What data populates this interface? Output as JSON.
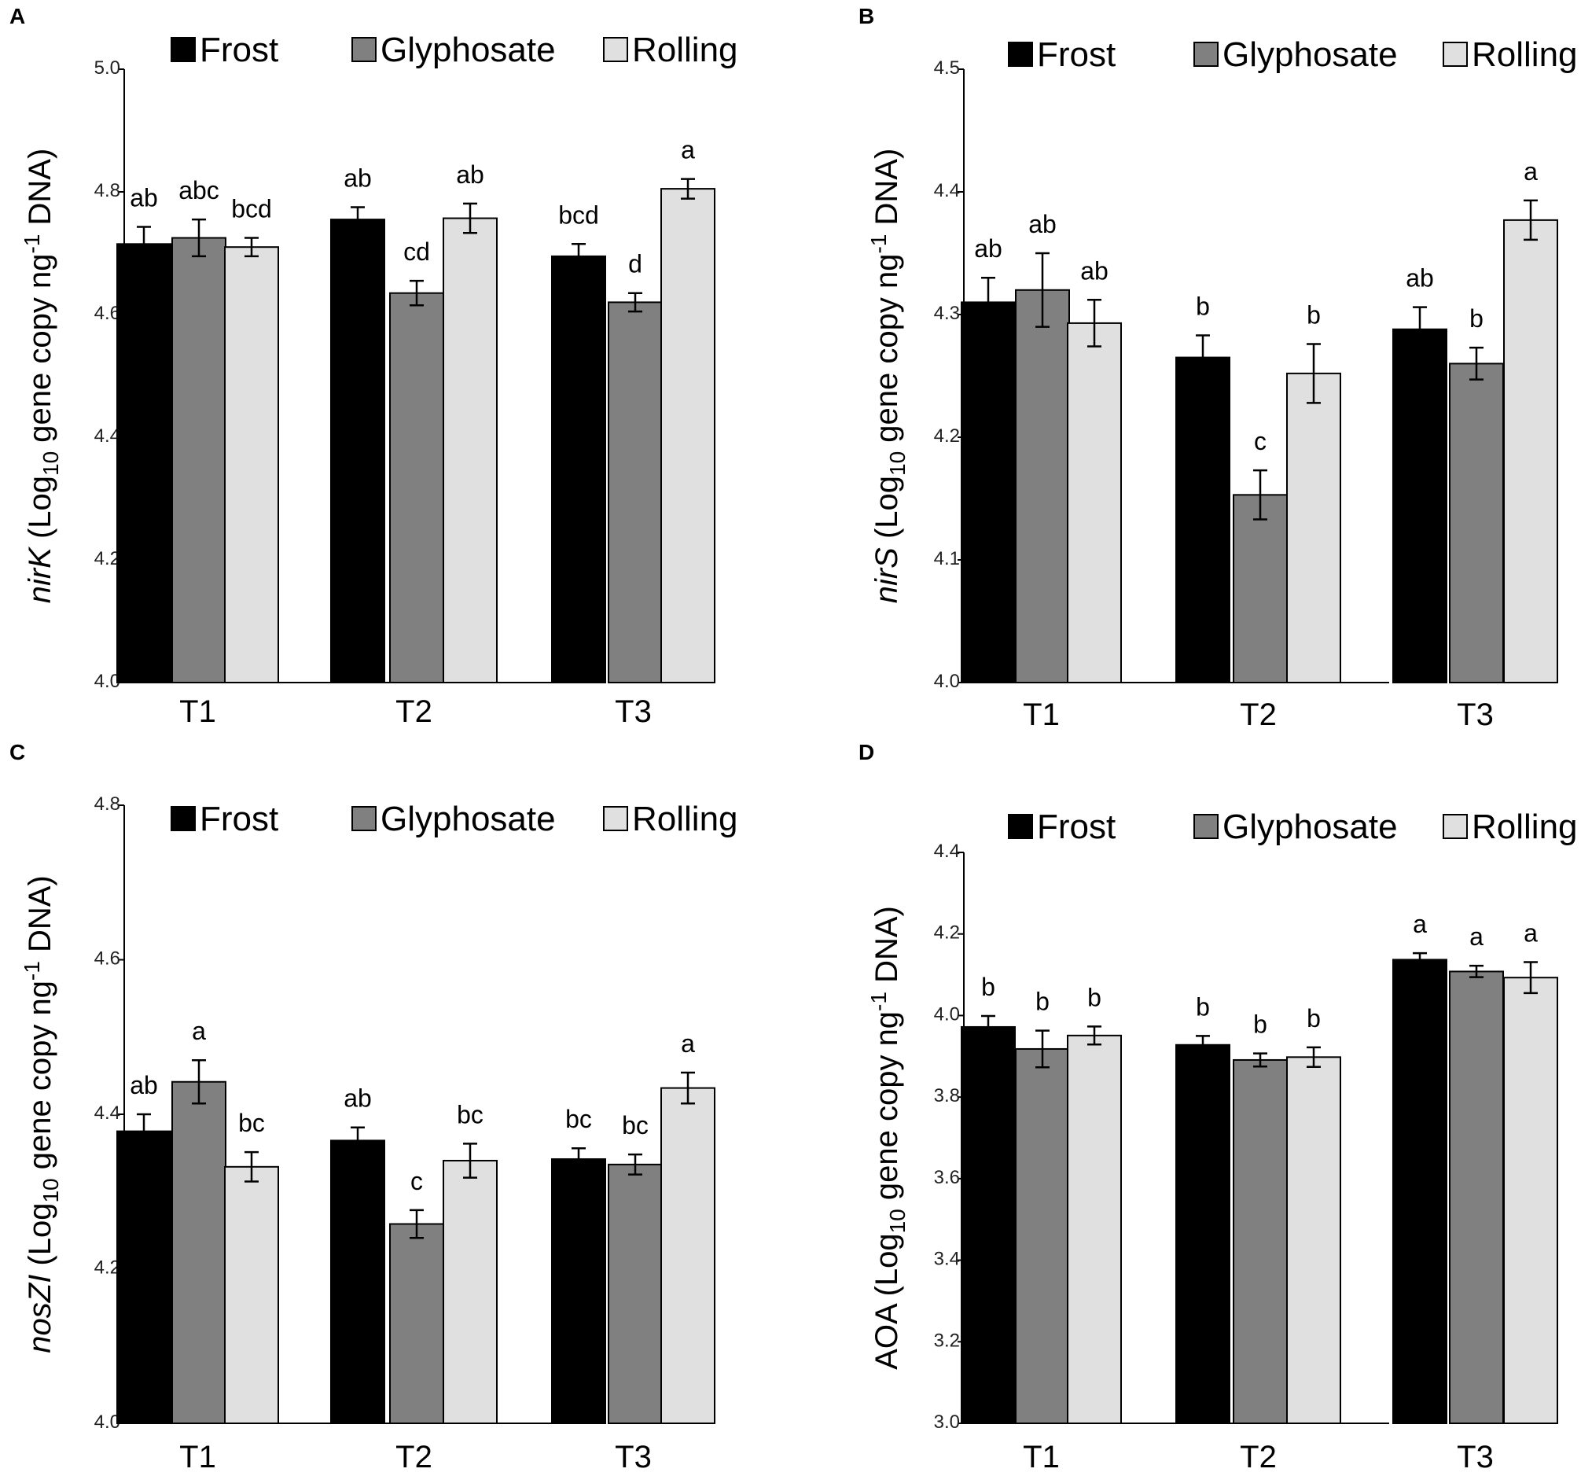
{
  "colors": {
    "Frost": "#000000",
    "Glyphosate": "#808080",
    "Rolling": "#e0e0e0"
  },
  "legend": [
    "Frost",
    "Glyphosate",
    "Rolling"
  ],
  "chart_data": [
    {
      "panel": "A",
      "type": "bar",
      "gene": "nirK",
      "italic_gene": true,
      "ylabel_suffix": "(Log",
      "ylabel_sub": "10",
      "ylabel_mid": " gene copy ng",
      "ylabel_sup": "-1",
      "ylabel_end": " DNA)",
      "categories": [
        "T1",
        "T2",
        "T3"
      ],
      "ylim": [
        4.0,
        5.0
      ],
      "yticks": [
        "4.0",
        "4.2",
        "4.4",
        "4.6",
        "4.8",
        "5.0"
      ],
      "series": [
        {
          "name": "Frost",
          "values": [
            4.715,
            4.755,
            4.695
          ],
          "errors": [
            0.028,
            0.02,
            0.02
          ],
          "labels": [
            "ab",
            "ab",
            "bcd"
          ]
        },
        {
          "name": "Glyphosate",
          "values": [
            4.725,
            4.635,
            4.62
          ],
          "errors": [
            0.03,
            0.02,
            0.015
          ],
          "labels": [
            "abc",
            "cd",
            "d"
          ]
        },
        {
          "name": "Rolling",
          "values": [
            4.71,
            4.757,
            4.805
          ],
          "errors": [
            0.015,
            0.024,
            0.016
          ],
          "labels": [
            "bcd",
            "ab",
            "a"
          ]
        }
      ]
    },
    {
      "panel": "B",
      "type": "bar",
      "gene": "nirS",
      "italic_gene": true,
      "ylabel_suffix": "(Log",
      "ylabel_sub": "10",
      "ylabel_mid": " gene copy ng",
      "ylabel_sup": "-1",
      "ylabel_end": " DNA)",
      "categories": [
        "T1",
        "T2",
        "T3"
      ],
      "ylim": [
        4.0,
        4.5
      ],
      "yticks": [
        "4.0",
        "4.1",
        "4.2",
        "4.3",
        "4.4",
        "4.5"
      ],
      "series": [
        {
          "name": "Frost",
          "values": [
            4.31,
            4.265,
            4.288
          ],
          "errors": [
            0.02,
            0.018,
            0.018
          ],
          "labels": [
            "ab",
            "b",
            "ab"
          ]
        },
        {
          "name": "Glyphosate",
          "values": [
            4.32,
            4.153,
            4.26
          ],
          "errors": [
            0.03,
            0.02,
            0.013
          ],
          "labels": [
            "ab",
            "c",
            "b"
          ]
        },
        {
          "name": "Rolling",
          "values": [
            4.293,
            4.252,
            4.377
          ],
          "errors": [
            0.019,
            0.024,
            0.016
          ],
          "labels": [
            "ab",
            "b",
            "a"
          ]
        }
      ]
    },
    {
      "panel": "C",
      "type": "bar",
      "gene": "nosZI",
      "italic_gene": true,
      "ylabel_suffix": "(Log",
      "ylabel_sub": "10",
      "ylabel_mid": " gene copy ng",
      "ylabel_sup": "-1",
      "ylabel_end": " DNA)",
      "categories": [
        "T1",
        "T2",
        "T3"
      ],
      "ylim": [
        4.0,
        4.8
      ],
      "yticks": [
        "4.0",
        "4.2",
        "4.4",
        "4.6",
        "4.8"
      ],
      "series": [
        {
          "name": "Frost",
          "values": [
            4.378,
            4.366,
            4.342
          ],
          "errors": [
            0.022,
            0.017,
            0.014
          ],
          "labels": [
            "ab",
            "ab",
            "bc"
          ]
        },
        {
          "name": "Glyphosate",
          "values": [
            4.442,
            4.258,
            4.335
          ],
          "errors": [
            0.028,
            0.018,
            0.013
          ],
          "labels": [
            "a",
            "c",
            "bc"
          ]
        },
        {
          "name": "Rolling",
          "values": [
            4.332,
            4.34,
            4.434
          ],
          "errors": [
            0.019,
            0.022,
            0.02
          ],
          "labels": [
            "bc",
            "bc",
            "a"
          ]
        }
      ]
    },
    {
      "panel": "D",
      "type": "bar",
      "gene": "AOA",
      "italic_gene": false,
      "ylabel_suffix": "(Log",
      "ylabel_sub": "10",
      "ylabel_mid": " gene copy ng",
      "ylabel_sup": "-1",
      "ylabel_end": " DNA)",
      "categories": [
        "T1",
        "T2",
        "T3"
      ],
      "ylim": [
        3.0,
        4.4
      ],
      "yticks": [
        "3.0",
        "3.2",
        "3.4",
        "3.6",
        "3.8",
        "4.0",
        "4.2",
        "4.4"
      ],
      "series": [
        {
          "name": "Frost",
          "values": [
            3.972,
            3.928,
            4.137
          ],
          "errors": [
            0.027,
            0.022,
            0.016
          ],
          "labels": [
            "b",
            "b",
            "a"
          ]
        },
        {
          "name": "Glyphosate",
          "values": [
            3.918,
            3.891,
            4.108
          ],
          "errors": [
            0.045,
            0.016,
            0.014
          ],
          "labels": [
            "b",
            "b",
            "a"
          ]
        },
        {
          "name": "Rolling",
          "values": [
            3.951,
            3.898,
            4.093
          ],
          "errors": [
            0.022,
            0.024,
            0.038
          ],
          "labels": [
            "b",
            "b",
            "a"
          ]
        }
      ]
    }
  ]
}
